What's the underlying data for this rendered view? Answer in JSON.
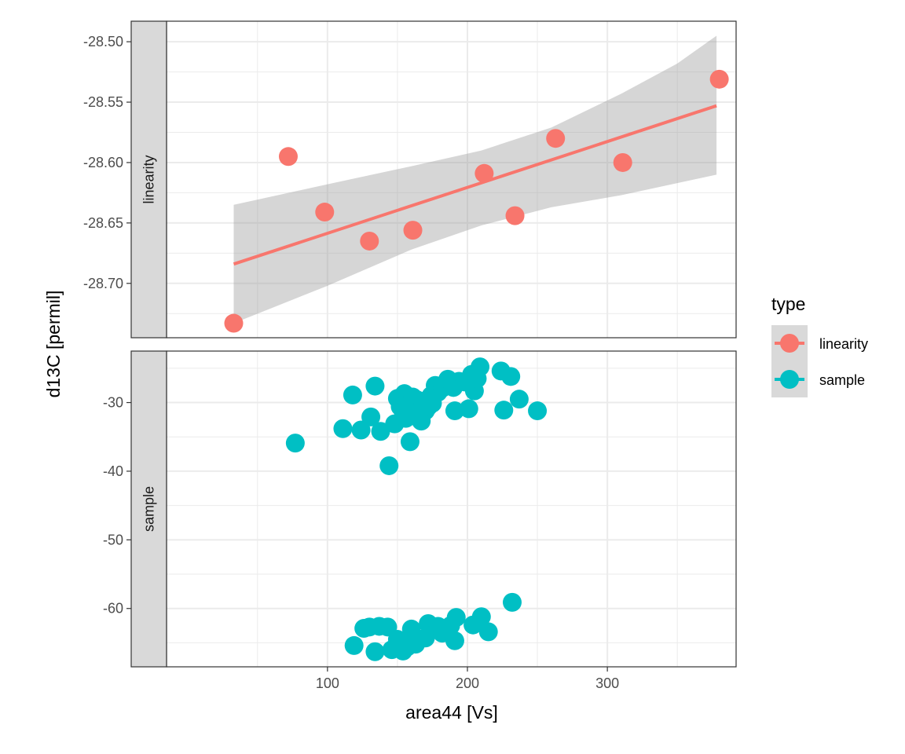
{
  "chart_data": {
    "type": "scatter",
    "xlabel": "area44 [Vs]",
    "ylabel": "d13C [permil]",
    "x_ticks": [
      100,
      200,
      300
    ],
    "xlim": [
      -15,
      392
    ],
    "colors": {
      "linearity": "#F8766D",
      "sample": "#00BFC4",
      "ribbon": "#999999",
      "strip_bg": "#D9D9D9",
      "grid": "#EBEBEB"
    },
    "legend": {
      "title": "type",
      "position": "right",
      "entries": [
        {
          "key": "linearity",
          "label": "linearity"
        },
        {
          "key": "sample",
          "label": "sample"
        }
      ]
    },
    "facets": [
      {
        "key": "linearity",
        "strip_label": "linearity",
        "ylim": [
          -28.745,
          -28.483
        ],
        "y_ticks": [
          -28.5,
          -28.55,
          -28.6,
          -28.65,
          -28.7
        ],
        "y_tick_labels": [
          "-28.50",
          "-28.55",
          "-28.60",
          "-28.65",
          "-28.70"
        ],
        "points": [
          [
            33,
            -28.733
          ],
          [
            72,
            -28.595
          ],
          [
            98,
            -28.641
          ],
          [
            130,
            -28.665
          ],
          [
            161,
            -28.656
          ],
          [
            212,
            -28.609
          ],
          [
            234,
            -28.644
          ],
          [
            263,
            -28.58
          ],
          [
            311,
            -28.6
          ],
          [
            380,
            -28.531
          ]
        ],
        "fit_line": [
          [
            33,
            -28.684
          ],
          [
            378,
            -28.553
          ]
        ],
        "ribbon_upper": [
          [
            33,
            -28.635
          ],
          [
            100,
            -28.618
          ],
          [
            160,
            -28.603
          ],
          [
            210,
            -28.59
          ],
          [
            260,
            -28.571
          ],
          [
            310,
            -28.543
          ],
          [
            350,
            -28.518
          ],
          [
            378,
            -28.495
          ]
        ],
        "ribbon_lower": [
          [
            33,
            -28.733
          ],
          [
            100,
            -28.702
          ],
          [
            160,
            -28.672
          ],
          [
            210,
            -28.652
          ],
          [
            260,
            -28.637
          ],
          [
            310,
            -28.627
          ],
          [
            350,
            -28.617
          ],
          [
            378,
            -28.61
          ]
        ]
      },
      {
        "key": "sample",
        "strip_label": "sample",
        "ylim": [
          -68.5,
          -22.5
        ],
        "y_ticks": [
          -30,
          -40,
          -50,
          -60
        ],
        "y_tick_labels": [
          "-30",
          "-40",
          "-50",
          "-60"
        ],
        "points": [
          [
            77,
            -35.9
          ],
          [
            111,
            -33.8
          ],
          [
            118,
            -28.9
          ],
          [
            124,
            -34.0
          ],
          [
            131,
            -32.1
          ],
          [
            134,
            -27.6
          ],
          [
            138,
            -34.2
          ],
          [
            144,
            -39.2
          ],
          [
            148,
            -33.1
          ],
          [
            150,
            -29.4
          ],
          [
            152,
            -30.6
          ],
          [
            154,
            -31.2
          ],
          [
            155,
            -28.7
          ],
          [
            156,
            -32.3
          ],
          [
            157,
            -29.9
          ],
          [
            158,
            -30.9
          ],
          [
            159,
            -35.7
          ],
          [
            160,
            -31.5
          ],
          [
            161,
            -29.2
          ],
          [
            162,
            -30.4
          ],
          [
            163,
            -32.0
          ],
          [
            164,
            -29.6
          ],
          [
            165,
            -31.8
          ],
          [
            166,
            -30.8
          ],
          [
            167,
            -32.7
          ],
          [
            168,
            -30.2
          ],
          [
            169,
            -29.8
          ],
          [
            170,
            -31.2
          ],
          [
            172,
            -30.6
          ],
          [
            174,
            -29.0
          ],
          [
            175,
            -30.1
          ],
          [
            177,
            -27.5
          ],
          [
            179,
            -28.5
          ],
          [
            182,
            -27.9
          ],
          [
            186,
            -26.6
          ],
          [
            190,
            -27.8
          ],
          [
            191,
            -31.2
          ],
          [
            194,
            -26.9
          ],
          [
            198,
            -27.0
          ],
          [
            201,
            -30.9
          ],
          [
            203,
            -25.9
          ],
          [
            205,
            -28.3
          ],
          [
            207,
            -26.5
          ],
          [
            209,
            -24.8
          ],
          [
            224,
            -25.4
          ],
          [
            226,
            -31.1
          ],
          [
            231,
            -26.2
          ],
          [
            237,
            -29.5
          ],
          [
            250,
            -31.2
          ],
          [
            119,
            -65.4
          ],
          [
            126,
            -62.9
          ],
          [
            130,
            -62.7
          ],
          [
            134,
            -66.3
          ],
          [
            137,
            -62.6
          ],
          [
            143,
            -62.7
          ],
          [
            146,
            -66.0
          ],
          [
            150,
            -64.5
          ],
          [
            154,
            -66.2
          ],
          [
            157,
            -65.6
          ],
          [
            160,
            -63.0
          ],
          [
            163,
            -65.2
          ],
          [
            170,
            -64.3
          ],
          [
            172,
            -62.2
          ],
          [
            179,
            -62.6
          ],
          [
            182,
            -63.6
          ],
          [
            188,
            -62.5
          ],
          [
            191,
            -64.7
          ],
          [
            192,
            -61.3
          ],
          [
            204,
            -62.4
          ],
          [
            210,
            -61.2
          ],
          [
            215,
            -63.4
          ],
          [
            232,
            -59.1
          ],
          [
            155,
            -65.0
          ]
        ]
      }
    ]
  }
}
